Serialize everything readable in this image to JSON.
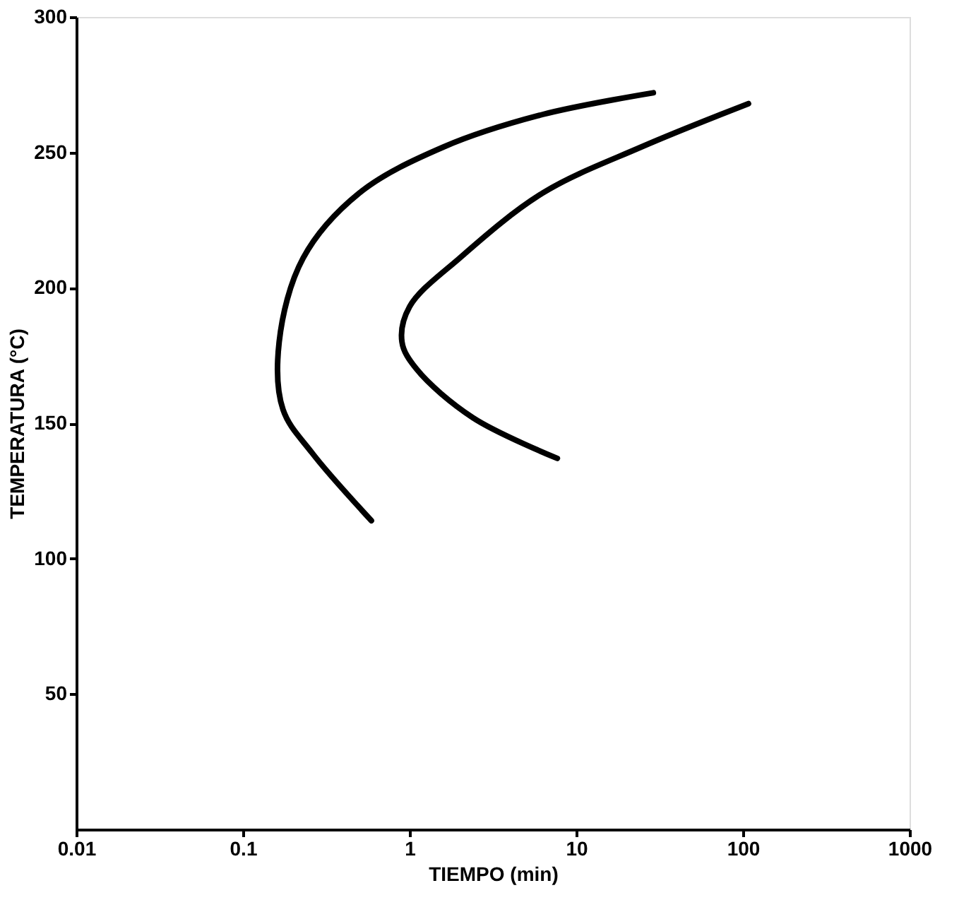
{
  "chart_data": {
    "type": "line",
    "xlabel": "TIEMPO (min)",
    "ylabel": "TEMPERATURA (°C)",
    "log": "x",
    "xlim": [
      0.01,
      1000
    ],
    "xticks": [
      0.01,
      0.1,
      1,
      10,
      100,
      1000
    ],
    "ylim": [
      0,
      300
    ],
    "yticks": [
      50,
      100,
      150,
      200,
      250,
      300
    ],
    "grid": false,
    "legend": false,
    "marker": "none",
    "line_style": "solid",
    "series": [
      {
        "color": "#000000",
        "x": [
          29,
          6.3,
          1.6,
          0.5,
          0.23,
          0.165,
          0.174,
          0.26,
          0.59
        ],
        "values": [
          272,
          264,
          252,
          235,
          211,
          180,
          155,
          139,
          114
        ]
      },
      {
        "color": "#000000",
        "x": [
          108,
          24.6,
          6.3,
          2,
          1.0,
          0.9,
          1.1,
          2.4,
          7.7
        ],
        "values": [
          268,
          252,
          235,
          211,
          193,
          180,
          170,
          152,
          137
        ]
      }
    ]
  }
}
